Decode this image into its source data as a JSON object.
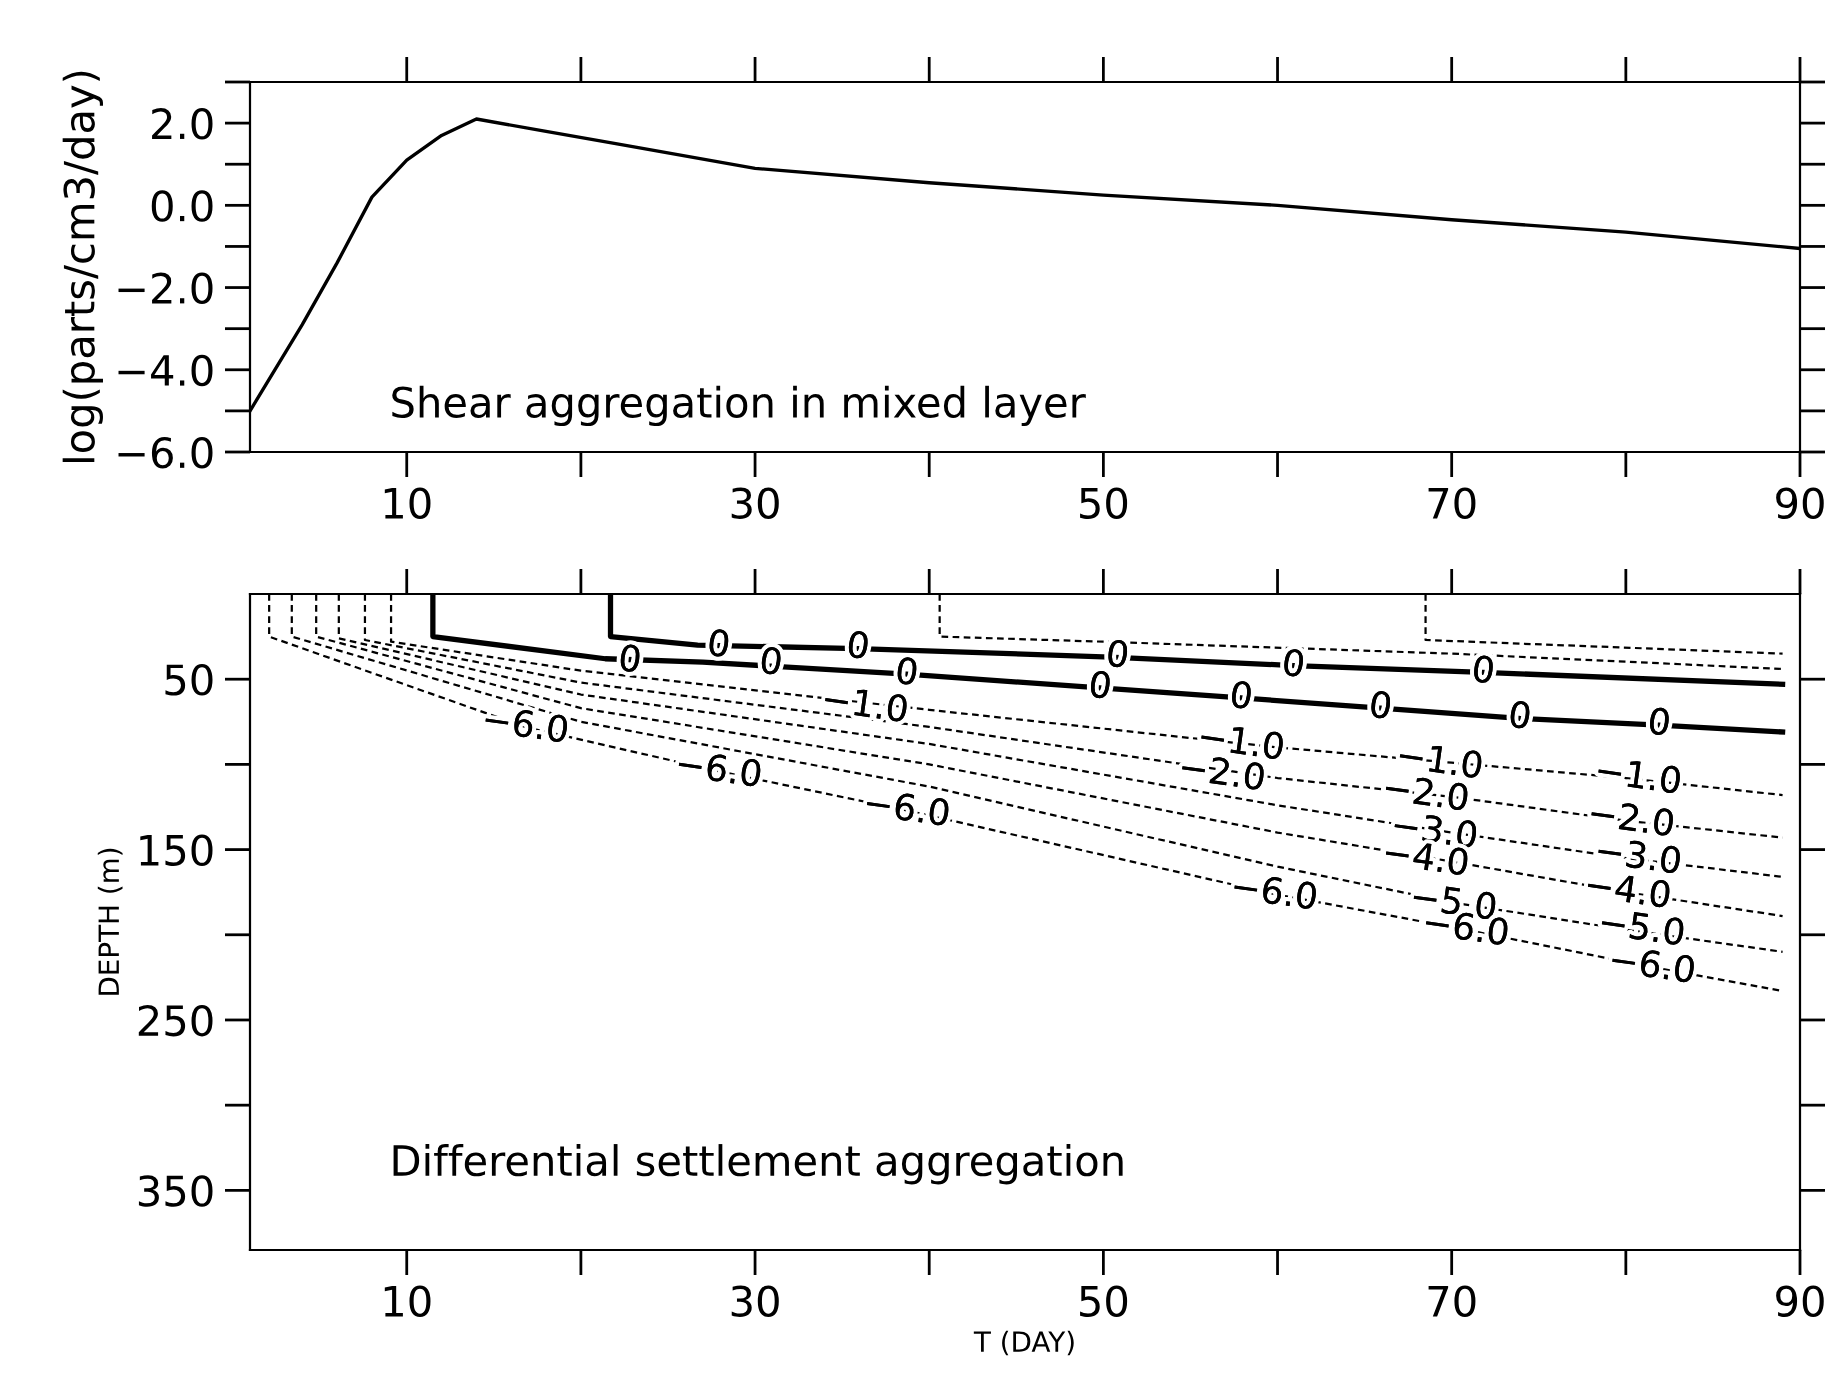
{
  "chart_data": [
    {
      "type": "line",
      "ylabel": "log(parts/cm3/day)",
      "xlim": [
        1,
        90
      ],
      "ylim": [
        -6,
        3
      ],
      "xticks": [
        10,
        {
          "value": 20,
          "label": null
        },
        30,
        {
          "value": 40,
          "label": null
        },
        50,
        {
          "value": 60,
          "label": null
        },
        70,
        {
          "value": 80,
          "label": null
        },
        90
      ],
      "yticks": [
        {
          "value": -6,
          "label": "−6.0"
        },
        {
          "value": -5,
          "label": null
        },
        {
          "value": -4,
          "label": "−4.0"
        },
        {
          "value": -3,
          "label": null
        },
        {
          "value": -2,
          "label": "−2.0"
        },
        {
          "value": -1,
          "label": null
        },
        {
          "value": 0,
          "label": "0.0"
        },
        {
          "value": 1,
          "label": null
        },
        {
          "value": 2,
          "label": "2.0"
        },
        {
          "value": 3,
          "label": null
        }
      ],
      "series": [
        {
          "color": "#000000",
          "line_style": "solid",
          "x": [
            1,
            4,
            6,
            8,
            10,
            12,
            14,
            18,
            22,
            30,
            40,
            50,
            60,
            70,
            80,
            90
          ],
          "values": [
            -5.0,
            -2.9,
            -1.4,
            0.2,
            1.1,
            1.7,
            2.1,
            1.8,
            1.5,
            0.9,
            0.55,
            0.25,
            0.0,
            -0.35,
            -0.65,
            -1.05
          ]
        }
      ],
      "annotations": [
        "Shear aggregation in mixed layer"
      ]
    },
    {
      "type": "line",
      "xlabel": "T (DAY)",
      "ylabel": "DEPTH (m)",
      "xlim": [
        1,
        90
      ],
      "ylim": [
        385,
        0
      ],
      "xticks": [
        10,
        {
          "value": 20,
          "label": null
        },
        30,
        {
          "value": 40,
          "label": null
        },
        50,
        {
          "value": 60,
          "label": null
        },
        70,
        {
          "value": 80,
          "label": null
        },
        90
      ],
      "yticks": [
        50,
        {
          "value": 100,
          "label": null
        },
        150,
        {
          "value": 200,
          "label": null
        },
        250,
        {
          "value": 300,
          "label": null
        },
        350
      ],
      "series": [
        {
          "color": "#000000",
          "line_style": "dashed",
          "x": [
            68.5,
            68.5,
            89
          ],
          "values": [
            0,
            27,
            35
          ]
        },
        {
          "color": "#000000",
          "line_style": "dashed",
          "x": [
            40.6,
            40.6,
            50,
            70,
            89
          ],
          "values": [
            0,
            25,
            28,
            35,
            44
          ]
        },
        {
          "color": "#000000",
          "line_style": "solid",
          "x": [
            21.7,
            21.7,
            26.7,
            35.9,
            50.4,
            60.9,
            71.8,
            89
          ],
          "values": [
            0,
            25,
            30,
            32,
            37,
            42,
            46,
            53
          ]
        },
        {
          "color": "#000000",
          "line_style": "solid",
          "x": [
            11.5,
            11.5,
            21.4,
            27,
            38.7,
            49.6,
            57.9,
            65.9,
            73.9,
            81.9,
            89
          ],
          "values": [
            0,
            25,
            38,
            40,
            47,
            55,
            61,
            67,
            73,
            77,
            81
          ]
        },
        {
          "color": "#000000",
          "line_style": "dashed",
          "x": [
            9.1,
            9.1,
            20,
            40,
            60,
            70,
            80,
            89
          ],
          "values": [
            0,
            28,
            45,
            68,
            90,
            99,
            108,
            118
          ]
        },
        {
          "color": "#000000",
          "line_style": "dashed",
          "x": [
            7.6,
            7.6,
            20,
            40,
            60,
            70,
            80,
            89
          ],
          "values": [
            0,
            27,
            52,
            78,
            108,
            119,
            133,
            143
          ]
        },
        {
          "color": "#000000",
          "line_style": "dashed",
          "x": [
            6.1,
            6.1,
            20,
            40,
            60,
            70,
            80,
            89
          ],
          "values": [
            0,
            26,
            59,
            88,
            124,
            140,
            155,
            166
          ]
        },
        {
          "color": "#000000",
          "line_style": "dashed",
          "x": [
            4.8,
            4.8,
            20,
            40,
            60,
            70,
            80,
            89
          ],
          "values": [
            0,
            25,
            67,
            100,
            140,
            157,
            175,
            189
          ]
        },
        {
          "color": "#000000",
          "line_style": "dashed",
          "x": [
            3.4,
            3.4,
            20,
            40,
            60,
            70,
            80,
            89
          ],
          "values": [
            0,
            25,
            75,
            113,
            160,
            181,
            197,
            210
          ]
        },
        {
          "color": "#000000",
          "line_style": "dashed",
          "x": [
            2.1,
            2.1,
            16.8,
            27.9,
            38.7,
            59.8,
            70.8,
            81.5,
            89
          ],
          "values": [
            0,
            25,
            78,
            104,
            127,
            176,
            197,
            219,
            233
          ]
        }
      ],
      "annotations": [
        "Differential settlement aggregation",
        {
          "text": "0",
          "x": 22.8,
          "y": 39.5
        },
        {
          "text": "0",
          "x": 30.9,
          "y": 41
        },
        {
          "text": "0",
          "x": 38.7,
          "y": 47
        },
        {
          "text": "0",
          "x": 49.8,
          "y": 55
        },
        {
          "text": "0",
          "x": 57.9,
          "y": 61
        },
        {
          "text": "0",
          "x": 65.9,
          "y": 66.8
        },
        {
          "text": "0",
          "x": 73.9,
          "y": 72.7
        },
        {
          "text": "0",
          "x": 81.9,
          "y": 76.6
        },
        {
          "text": "0",
          "x": 27.9,
          "y": 30.6
        },
        {
          "text": "0",
          "x": 35.9,
          "y": 31.6
        },
        {
          "text": "0",
          "x": 50.8,
          "y": 36.8
        },
        {
          "text": "0",
          "x": 60.9,
          "y": 42.2
        },
        {
          "text": "0",
          "x": 71.8,
          "y": 46
        },
        {
          "text": "−1.0",
          "x": 36.3,
          "y": 66
        },
        {
          "text": "−1.0",
          "x": 57.9,
          "y": 88
        },
        {
          "text": "−1.0",
          "x": 69.3,
          "y": 99
        },
        {
          "text": "−1.0",
          "x": 80.7,
          "y": 108
        },
        {
          "text": "−2.0",
          "x": 56.8,
          "y": 106
        },
        {
          "text": "−2.0",
          "x": 68.5,
          "y": 118
        },
        {
          "text": "−2.0",
          "x": 80.3,
          "y": 133
        },
        {
          "text": "−3.0",
          "x": 69,
          "y": 140
        },
        {
          "text": "−3.0",
          "x": 80.7,
          "y": 155
        },
        {
          "text": "−4.0",
          "x": 68.5,
          "y": 156
        },
        {
          "text": "−4.0",
          "x": 80.1,
          "y": 175
        },
        {
          "text": "−5.0",
          "x": 70.1,
          "y": 182
        },
        {
          "text": "−5.0",
          "x": 80.9,
          "y": 197
        },
        {
          "text": "−6.0",
          "x": 16.8,
          "y": 78
        },
        {
          "text": "−6.0",
          "x": 27.9,
          "y": 104
        },
        {
          "text": "−6.0",
          "x": 38.7,
          "y": 127
        },
        {
          "text": "−6.0",
          "x": 59.8,
          "y": 176
        },
        {
          "text": "−6.0",
          "x": 70.8,
          "y": 197
        },
        {
          "text": "−6.0",
          "x": 81.5,
          "y": 219
        }
      ]
    }
  ]
}
